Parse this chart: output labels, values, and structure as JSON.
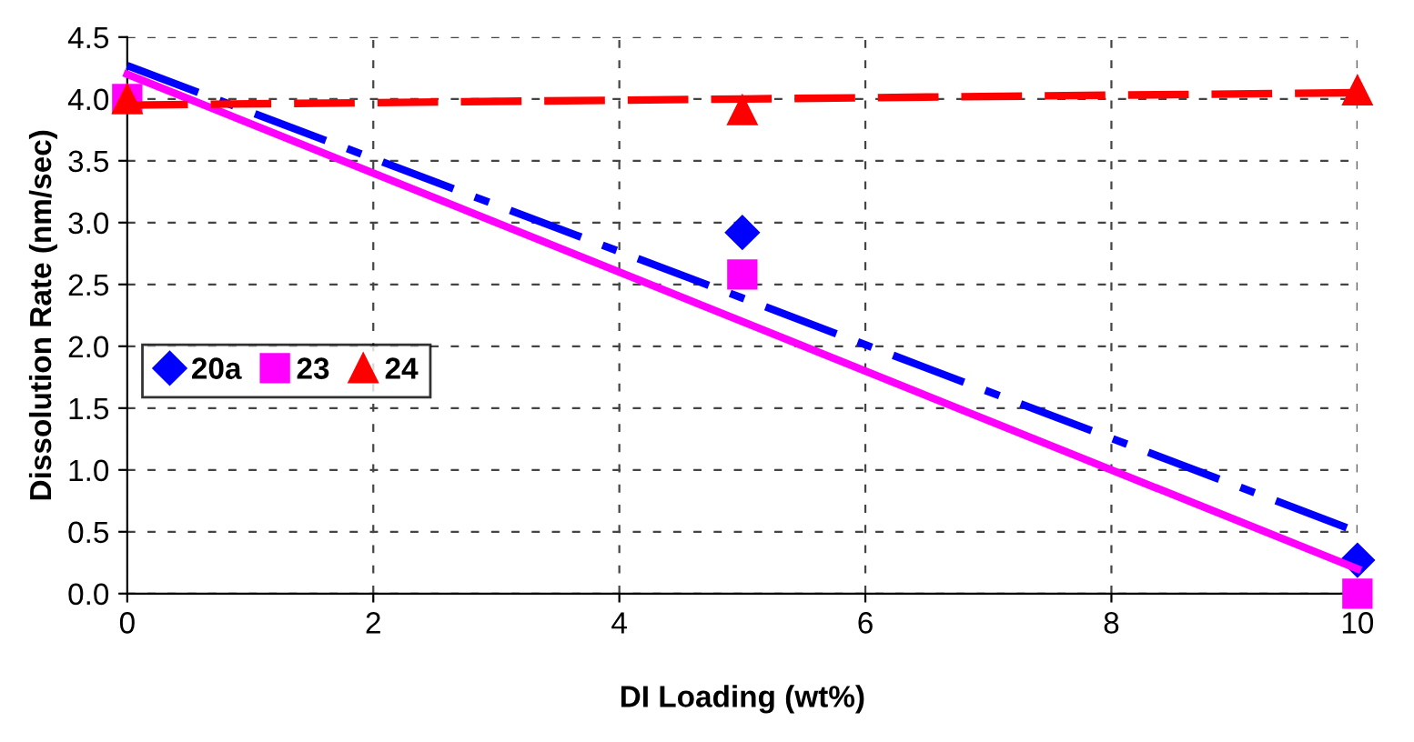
{
  "chart_data": {
    "type": "scatter",
    "xlabel": "DI Loading (wt%)",
    "ylabel": "Dissolution Rate (nm/sec)",
    "x": [
      0,
      5,
      10
    ],
    "series": [
      {
        "name": "20a",
        "color": "#0000ff",
        "marker": "diamond",
        "values": [
          null,
          2.92,
          0.27
        ]
      },
      {
        "name": "23",
        "color": "#ff00ff",
        "marker": "square",
        "values": [
          4.0,
          2.58,
          0.0
        ]
      },
      {
        "name": "24",
        "color": "#ff0000",
        "marker": "triangle",
        "values": [
          4.0,
          3.91,
          4.07
        ]
      },
      {
        "type": "line",
        "color": "#0000ff",
        "line_style": "dashdot",
        "values": [
          4.27,
          2.39,
          0.5
        ]
      },
      {
        "type": "line",
        "color": "#ff00ff",
        "line_style": "solid",
        "values": [
          4.2,
          2.2,
          0.2
        ]
      },
      {
        "type": "line",
        "color": "#ff0000",
        "line_style": "dashed",
        "values": [
          3.95,
          4.0,
          4.05
        ]
      }
    ],
    "xlim": [
      0,
      10
    ],
    "xticks": [
      0,
      2,
      4,
      6,
      8,
      10
    ],
    "ylim": [
      0,
      4.5
    ],
    "yticks": [
      {
        "value": 0,
        "label": "0.0"
      },
      {
        "value": 0.5,
        "label": "0.5"
      },
      {
        "value": 1,
        "label": "1.0"
      },
      {
        "value": 1.5,
        "label": "1.5"
      },
      {
        "value": 2,
        "label": "2.0"
      },
      {
        "value": 2.5,
        "label": "2.5"
      },
      {
        "value": 3,
        "label": "3.0"
      },
      {
        "value": 3.5,
        "label": "3.5"
      },
      {
        "value": 4,
        "label": "4.0"
      },
      {
        "value": 4.5,
        "label": "4.5"
      }
    ],
    "grid": true,
    "legend": "left"
  }
}
